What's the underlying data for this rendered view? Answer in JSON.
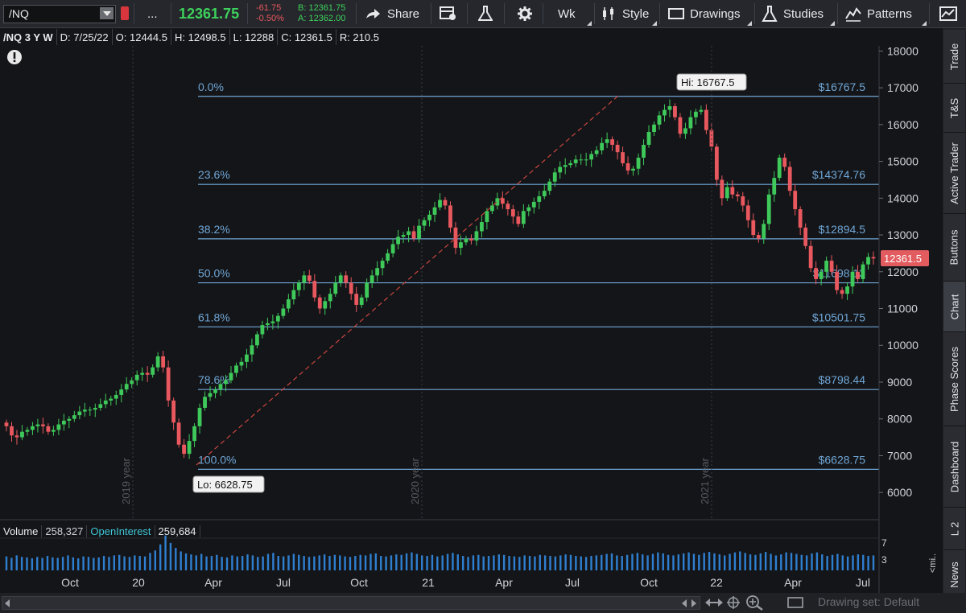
{
  "toolbar": {
    "symbol": "/NQ",
    "more": "...",
    "last_price": "12361.75",
    "change": "-61.75",
    "change_pct": "-0.50%",
    "bid": "B: 12361.75",
    "ask": "A: 12362.00",
    "share": "Share",
    "period": "Wk",
    "style": "Style",
    "drawings": "Drawings",
    "studies": "Studies",
    "patterns": "Patterns"
  },
  "info": {
    "symbol_period": "/NQ 3 Y W",
    "date": "D: 7/25/22",
    "open": "O: 12444.5",
    "high": "H: 12498.5",
    "low": "L: 12288",
    "close": "C: 12361.5",
    "range": "R: 210.5"
  },
  "colors": {
    "up": "#3ec95a",
    "down": "#e8585e",
    "fib": "#6fa6d6",
    "trend": "#c9463f",
    "price_tag": "#e25b5f"
  },
  "chart_data": {
    "type": "candlestick",
    "ylim": [
      5500,
      18400
    ],
    "y_ticks": [
      6000,
      7000,
      8000,
      9000,
      10000,
      11000,
      12000,
      13000,
      14000,
      15000,
      16000,
      17000,
      18000
    ],
    "x_ticks": [
      "Oct",
      "20",
      "Apr",
      "Jul",
      "Oct",
      "21",
      "Apr",
      "Jul",
      "Oct",
      "22",
      "Apr",
      "Jul"
    ],
    "year_labels": [
      "2019 year",
      "2020 year",
      "2021 year"
    ],
    "fib_levels": [
      {
        "pct": "0.0%",
        "price": "$16767.5",
        "value": 16767.5
      },
      {
        "pct": "23.6%",
        "price": "$14374.76",
        "value": 14374.76
      },
      {
        "pct": "38.2%",
        "price": "$12894.5",
        "value": 12894.5
      },
      {
        "pct": "50.0%",
        "price": "$11698.13",
        "value": 11698.13
      },
      {
        "pct": "61.8%",
        "price": "$10501.75",
        "value": 10501.75
      },
      {
        "pct": "78.6%",
        "price": "$8798.44",
        "value": 8798.44
      },
      {
        "pct": "100.0%",
        "price": "$6628.75",
        "value": 6628.75
      }
    ],
    "hi_label": "Hi: 16767.5",
    "lo_label": "Lo: 6628.75",
    "last_tag": "12361.5",
    "closes": [
      7800,
      7550,
      7500,
      7650,
      7700,
      7800,
      7850,
      7800,
      7650,
      7700,
      7850,
      7950,
      8000,
      8100,
      8200,
      8250,
      8250,
      8300,
      8400,
      8500,
      8550,
      8650,
      8800,
      8950,
      9050,
      9200,
      9250,
      9200,
      9400,
      9700,
      9400,
      8500,
      7900,
      7300,
      7050,
      7400,
      7800,
      8300,
      8600,
      8700,
      8800,
      8950,
      9050,
      9250,
      9450,
      9550,
      9750,
      10000,
      10300,
      10550,
      10600,
      10650,
      10800,
      11000,
      11250,
      11500,
      11700,
      11900,
      11750,
      11300,
      11000,
      11200,
      11400,
      11700,
      11900,
      11700,
      11400,
      11100,
      11300,
      11700,
      11900,
      12100,
      12300,
      12500,
      12750,
      12950,
      13000,
      13100,
      12900,
      13250,
      13400,
      13550,
      13750,
      13950,
      13800,
      13200,
      12650,
      12800,
      12900,
      12850,
      13100,
      13350,
      13650,
      13800,
      14000,
      13850,
      13700,
      13500,
      13300,
      13650,
      13750,
      13900,
      14050,
      14200,
      14450,
      14700,
      14850,
      14900,
      14950,
      15050,
      15050,
      15050,
      15200,
      15300,
      15500,
      15600,
      15450,
      15250,
      14950,
      14750,
      14800,
      15100,
      15450,
      15800,
      16000,
      16250,
      16400,
      16500,
      16200,
      15750,
      15900,
      16200,
      16350,
      16400,
      15850,
      15400,
      14500,
      14000,
      14300,
      14100,
      14050,
      13800,
      13400,
      13000,
      12900,
      13300,
      14100,
      14550,
      15100,
      14850,
      14200,
      13700,
      13200,
      12700,
      12100,
      11800,
      12000,
      12300,
      12000,
      11500,
      11400,
      11600,
      12000,
      11800,
      12200,
      12400,
      12361
    ]
  },
  "volume": {
    "label": "Volume",
    "value": "258,327",
    "oi_label": "OpenInterest",
    "oi_value": "259,684",
    "scale_hi": "7",
    "scale_lo": "3",
    "unit": "<mi..",
    "bars": [
      28,
      25,
      30,
      27,
      26,
      24,
      27,
      25,
      29,
      26,
      25,
      27,
      30,
      26,
      24,
      28,
      27,
      25,
      26,
      29,
      27,
      30,
      31,
      28,
      27,
      30,
      29,
      28,
      35,
      40,
      52,
      70,
      55,
      45,
      38,
      34,
      32,
      30,
      33,
      28,
      29,
      31,
      27,
      26,
      30,
      28,
      29,
      32,
      30,
      27,
      28,
      33,
      35,
      29,
      28,
      30,
      33,
      31,
      29,
      27,
      28,
      30,
      32,
      29,
      31,
      30,
      28,
      27,
      29,
      31,
      30,
      33,
      34,
      29,
      28,
      30,
      32,
      31,
      34,
      36,
      33,
      30,
      29,
      31,
      28,
      30,
      33,
      35,
      32,
      29,
      27,
      30,
      31,
      28,
      29,
      30,
      32,
      31,
      29,
      28,
      27,
      30,
      29,
      28,
      31,
      30,
      29,
      28,
      30,
      32,
      31,
      29,
      28,
      27,
      29,
      30,
      31,
      33,
      34,
      30,
      29,
      31,
      33,
      35,
      32,
      30,
      33,
      36,
      34,
      31,
      30,
      32,
      34,
      36,
      33,
      31,
      35,
      37,
      34,
      32,
      30,
      33,
      36,
      38,
      35,
      32,
      31,
      34,
      37,
      33,
      30,
      32,
      36,
      35,
      33,
      31,
      30,
      34,
      36,
      32,
      29,
      31,
      33,
      30,
      28,
      30,
      32,
      31,
      29,
      30
    ]
  },
  "sidebar": {
    "tabs": [
      "Trade",
      "T&S",
      "Active Trader",
      "Buttons",
      "Chart",
      "Phase Scores",
      "Dashboard",
      "L 2",
      "News"
    ]
  },
  "bottom": {
    "drawing_set": "Drawing set: Default"
  }
}
